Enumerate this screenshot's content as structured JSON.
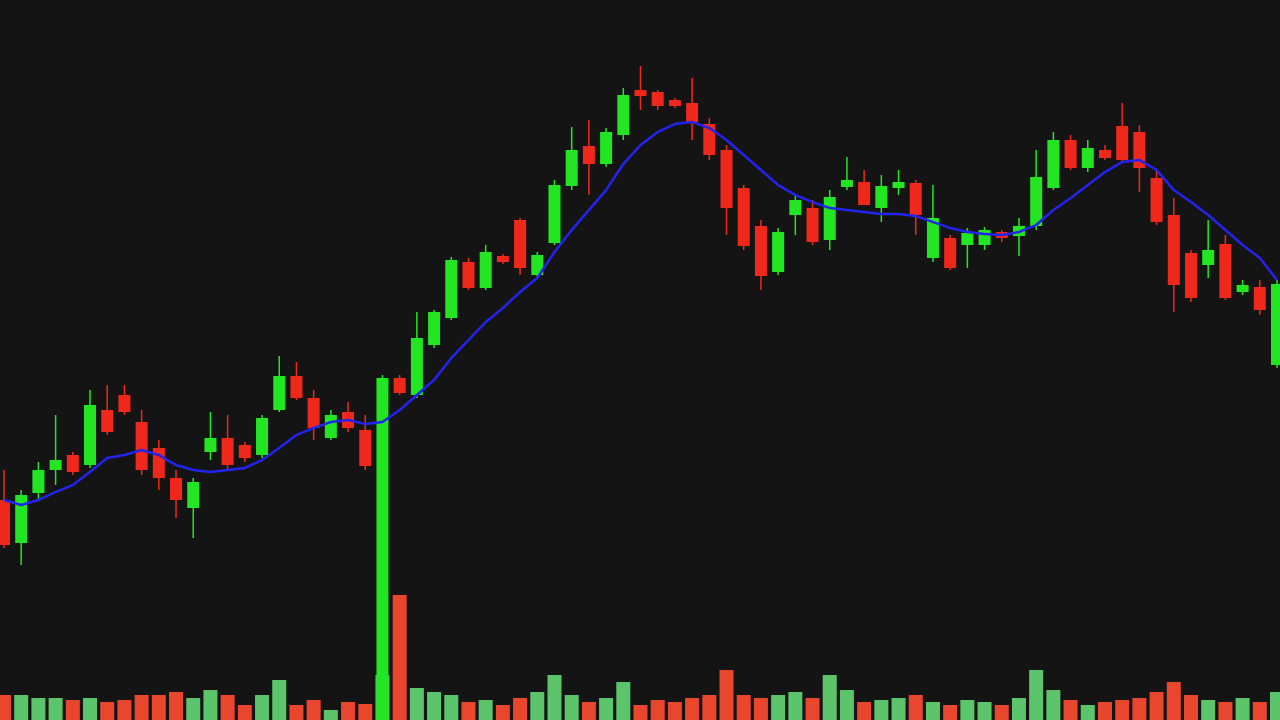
{
  "chart_data": {
    "type": "candlestick",
    "ylim": [
      0,
      720
    ],
    "volume_lim": [
      0,
      720
    ],
    "up_color": "#22e622",
    "down_color": "#f0281c",
    "ma_color": "#2323ee",
    "volume_up_color": "#5cc46a",
    "volume_down_color": "#e8472e",
    "open": [
      220,
      177,
      227,
      250,
      265,
      255,
      310,
      325,
      298,
      272,
      242,
      212,
      268,
      282,
      275,
      265,
      310,
      344,
      322,
      282,
      308,
      290,
      0,
      342,
      325,
      375,
      402,
      458,
      432,
      464,
      500,
      445,
      477,
      534,
      574,
      556,
      585,
      630,
      628,
      620,
      617,
      596,
      570,
      532,
      494,
      448,
      505,
      512,
      480,
      533,
      538,
      512,
      532,
      537,
      462,
      482,
      475,
      475,
      488,
      484,
      494,
      532,
      580,
      552,
      570,
      594,
      588,
      542,
      505,
      467,
      455,
      476,
      428,
      433,
      355
    ],
    "high": [
      250,
      230,
      258,
      305,
      268,
      330,
      335,
      335,
      310,
      280,
      250,
      242,
      308,
      305,
      278,
      305,
      364,
      358,
      330,
      310,
      318,
      305,
      345,
      345,
      408,
      410,
      463,
      462,
      475,
      466,
      502,
      468,
      540,
      593,
      600,
      592,
      632,
      654,
      630,
      622,
      642,
      602,
      575,
      535,
      500,
      492,
      525,
      520,
      530,
      563,
      550,
      545,
      550,
      540,
      535,
      485,
      492,
      493,
      490,
      502,
      570,
      588,
      585,
      580,
      575,
      617,
      595,
      550,
      522,
      470,
      500,
      485,
      440,
      440,
      440
    ],
    "low": [
      172,
      155,
      220,
      235,
      245,
      252,
      285,
      305,
      245,
      230,
      202,
      182,
      260,
      250,
      258,
      262,
      308,
      320,
      280,
      280,
      288,
      250,
      0,
      325,
      322,
      372,
      400,
      430,
      430,
      456,
      445,
      442,
      475,
      530,
      525,
      553,
      580,
      610,
      610,
      612,
      580,
      560,
      485,
      470,
      430,
      445,
      485,
      475,
      470,
      530,
      515,
      498,
      525,
      485,
      458,
      450,
      452,
      470,
      478,
      464,
      490,
      530,
      550,
      548,
      560,
      558,
      528,
      495,
      408,
      418,
      442,
      420,
      425,
      405,
      352
    ],
    "close": [
      175,
      225,
      250,
      260,
      248,
      315,
      288,
      308,
      250,
      242,
      220,
      238,
      282,
      255,
      262,
      302,
      344,
      322,
      292,
      305,
      292,
      254,
      342,
      327,
      382,
      408,
      460,
      432,
      468,
      458,
      452,
      465,
      535,
      570,
      556,
      588,
      625,
      624,
      614,
      614,
      598,
      565,
      512,
      474,
      444,
      488,
      520,
      478,
      523,
      540,
      515,
      534,
      538,
      505,
      502,
      452,
      487,
      490,
      482,
      494,
      543,
      580,
      552,
      572,
      562,
      560,
      552,
      498,
      435,
      422,
      470,
      422,
      435,
      410,
      436
    ],
    "ma": [
      220,
      215,
      220,
      228,
      235,
      248,
      262,
      265,
      270,
      265,
      255,
      250,
      248,
      250,
      252,
      260,
      272,
      285,
      292,
      298,
      300,
      296,
      298,
      310,
      325,
      340,
      362,
      380,
      398,
      412,
      428,
      442,
      468,
      490,
      510,
      530,
      556,
      575,
      588,
      596,
      598,
      592,
      580,
      565,
      550,
      535,
      525,
      518,
      512,
      510,
      508,
      506,
      506,
      504,
      498,
      492,
      488,
      486,
      485,
      488,
      495,
      510,
      522,
      535,
      548,
      558,
      560,
      550,
      530,
      518,
      505,
      490,
      475,
      462,
      440
    ],
    "volume": [
      25,
      25,
      22,
      22,
      20,
      22,
      18,
      20,
      25,
      25,
      28,
      22,
      30,
      25,
      15,
      25,
      40,
      15,
      20,
      10,
      18,
      16,
      45,
      125,
      32,
      28,
      25,
      18,
      20,
      15,
      22,
      28,
      45,
      25,
      18,
      22,
      38,
      15,
      20,
      18,
      22,
      25,
      50,
      25,
      22,
      25,
      28,
      22,
      45,
      30,
      18,
      20,
      22,
      25,
      18,
      15,
      20,
      18,
      15,
      22,
      50,
      30,
      20,
      15,
      18,
      20,
      22,
      28,
      38,
      25,
      20,
      18,
      22,
      18,
      28
    ]
  }
}
